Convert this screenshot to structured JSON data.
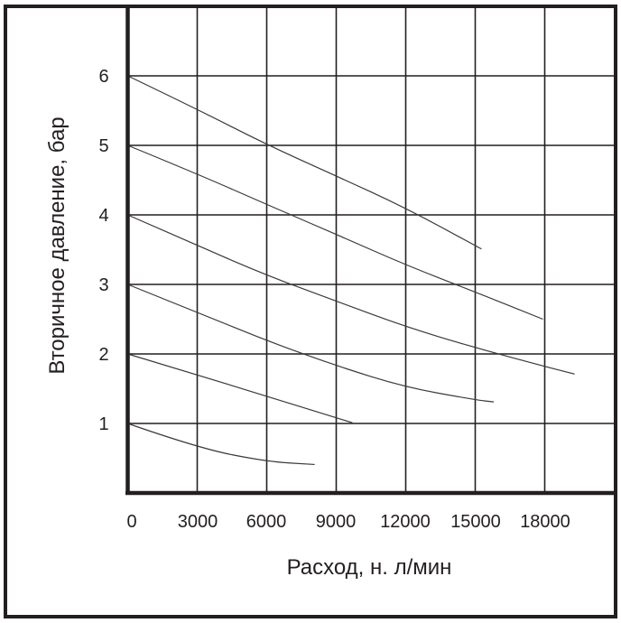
{
  "chart_data": {
    "type": "line",
    "title": "",
    "xlabel": "Расход, н. л/мин",
    "ylabel": "Вторичное давление, бар",
    "xlim": [
      0,
      20000
    ],
    "ylim": [
      0,
      6.8
    ],
    "x_ticks": [
      0,
      3000,
      6000,
      9000,
      12000,
      15000,
      18000
    ],
    "x_tick_labels": [
      "0",
      "3000",
      "6000",
      "9000",
      "12000",
      "15000",
      "18000"
    ],
    "y_ticks": [
      1,
      2,
      3,
      4,
      5,
      6
    ],
    "y_tick_labels": [
      "1",
      "2",
      "3",
      "4",
      "5",
      "6"
    ],
    "grid": true,
    "legend": null,
    "series": [
      {
        "name": "6 бар",
        "x": [
          0,
          3000,
          6000,
          9000,
          12000,
          15270
        ],
        "y": [
          6.0,
          5.52,
          5.01,
          4.56,
          4.1,
          3.51
        ]
      },
      {
        "name": "5 бар",
        "x": [
          0,
          3000,
          6000,
          9000,
          12000,
          15000,
          17920
        ],
        "y": [
          5.0,
          4.59,
          4.15,
          3.72,
          3.28,
          2.89,
          2.5
        ]
      },
      {
        "name": "4 бар",
        "x": [
          0,
          3000,
          6000,
          9000,
          12000,
          15000,
          18000,
          19290
        ],
        "y": [
          4.0,
          3.56,
          3.13,
          2.76,
          2.39,
          2.09,
          1.82,
          1.71
        ]
      },
      {
        "name": "3 бар",
        "x": [
          0,
          3000,
          6000,
          9000,
          12000,
          15000,
          15800
        ],
        "y": [
          3.0,
          2.6,
          2.19,
          1.83,
          1.52,
          1.34,
          1.31
        ]
      },
      {
        "name": "2 бар",
        "x": [
          0,
          3000,
          6000,
          9700
        ],
        "y": [
          2.0,
          1.7,
          1.39,
          1.01
        ]
      },
      {
        "name": "1 бар",
        "x": [
          0,
          3000,
          6000,
          8070
        ],
        "y": [
          1.0,
          0.65,
          0.45,
          0.41
        ]
      }
    ]
  }
}
